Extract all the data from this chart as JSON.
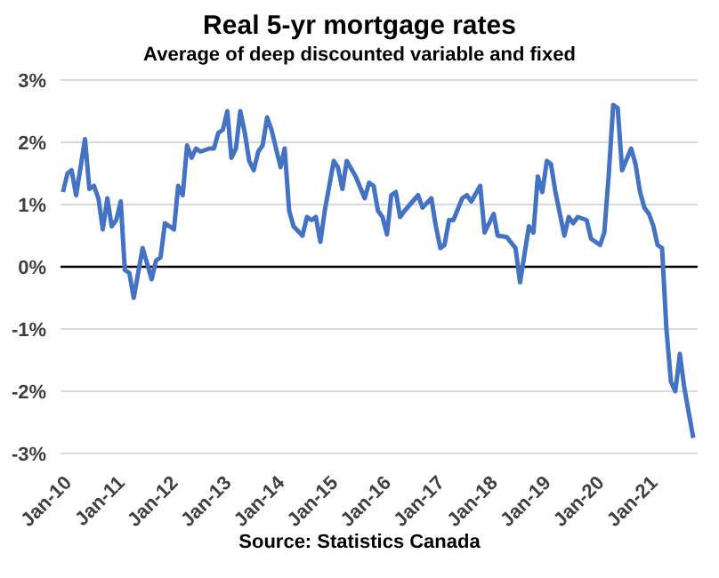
{
  "chart_data": {
    "type": "line",
    "title": "Real 5-yr mortgage rates",
    "subtitle": "Average of deep discounted variable and fixed",
    "annotations": [
      "Source: Statistics Canada"
    ],
    "series": [
      {
        "color": "#4472c4",
        "x": [
          "2010-01",
          "2010-02",
          "2010-03",
          "2010-04",
          "2010-06",
          "2010-07",
          "2010-08",
          "2010-09",
          "2010-10",
          "2010-11",
          "2010-12",
          "2011-01",
          "2011-02",
          "2011-03",
          "2011-04",
          "2011-05",
          "2011-07",
          "2011-09",
          "2011-10",
          "2011-11",
          "2011-12",
          "2012-02",
          "2012-03",
          "2012-04",
          "2012-05",
          "2012-06",
          "2012-07",
          "2012-08",
          "2012-10",
          "2012-11",
          "2012-12",
          "2013-01",
          "2013-02",
          "2013-03",
          "2013-04",
          "2013-05",
          "2013-06",
          "2013-07",
          "2013-08",
          "2013-09",
          "2013-10",
          "2013-11",
          "2013-12",
          "2014-02",
          "2014-03",
          "2014-04",
          "2014-05",
          "2014-07",
          "2014-08",
          "2014-09",
          "2014-10",
          "2014-11",
          "2014-12",
          "2015-02",
          "2015-03",
          "2015-04",
          "2015-05",
          "2015-07",
          "2015-09",
          "2015-10",
          "2015-11",
          "2015-12",
          "2016-01",
          "2016-02",
          "2016-03",
          "2016-04",
          "2016-05",
          "2016-06",
          "2016-09",
          "2016-10",
          "2016-12",
          "2017-01",
          "2017-02",
          "2017-03",
          "2017-04",
          "2017-05",
          "2017-07",
          "2017-08",
          "2017-09",
          "2017-11",
          "2017-12",
          "2018-02",
          "2018-03",
          "2018-05",
          "2018-07",
          "2018-08",
          "2018-10",
          "2018-11",
          "2018-12",
          "2019-01",
          "2019-02",
          "2019-03",
          "2019-04",
          "2019-06",
          "2019-07",
          "2019-08",
          "2019-09",
          "2019-11",
          "2019-12",
          "2020-02",
          "2020-03",
          "2020-04",
          "2020-05",
          "2020-06",
          "2020-07",
          "2020-09",
          "2020-10",
          "2020-11",
          "2020-12",
          "2021-01",
          "2021-02",
          "2021-03",
          "2021-04",
          "2021-05",
          "2021-06",
          "2021-07",
          "2021-08",
          "2021-09",
          "2021-11"
        ],
        "values": [
          1.2,
          1.5,
          1.55,
          1.15,
          2.05,
          1.25,
          1.3,
          1.1,
          0.6,
          1.1,
          0.65,
          0.75,
          1.05,
          -0.05,
          -0.1,
          -0.5,
          0.3,
          -0.2,
          0.1,
          0.15,
          0.7,
          0.6,
          1.3,
          1.15,
          1.95,
          1.75,
          1.9,
          1.85,
          1.9,
          1.9,
          2.15,
          2.2,
          2.5,
          1.75,
          1.9,
          2.5,
          2.15,
          1.7,
          1.55,
          1.85,
          1.95,
          2.4,
          2.2,
          1.6,
          1.9,
          0.9,
          0.65,
          0.5,
          0.8,
          0.75,
          0.8,
          0.4,
          0.9,
          1.7,
          1.6,
          1.25,
          1.7,
          1.45,
          1.1,
          1.35,
          1.3,
          0.9,
          0.8,
          0.52,
          1.15,
          1.2,
          0.8,
          0.9,
          1.15,
          0.95,
          1.1,
          0.65,
          0.3,
          0.35,
          0.75,
          0.75,
          1.1,
          1.15,
          1.05,
          1.3,
          0.55,
          0.85,
          0.5,
          0.48,
          0.3,
          -0.25,
          0.65,
          0.55,
          1.45,
          1.2,
          1.7,
          1.65,
          1.2,
          0.5,
          0.8,
          0.7,
          0.8,
          0.75,
          0.45,
          0.35,
          0.55,
          1.5,
          2.6,
          2.55,
          1.55,
          1.9,
          1.65,
          1.2,
          0.95,
          0.85,
          0.65,
          0.35,
          0.3,
          -1.0,
          -1.85,
          -2.0,
          -1.4,
          -1.95,
          -2.75
        ]
      }
    ],
    "xlim": [
      "2009-12-15",
      "2021-12-01"
    ],
    "xticks": [
      {
        "value": "2010-01",
        "label": "Jan-10"
      },
      {
        "value": "2011-01",
        "label": "Jan-11"
      },
      {
        "value": "2012-01",
        "label": "Jan-12"
      },
      {
        "value": "2013-01",
        "label": "Jan-13"
      },
      {
        "value": "2014-01",
        "label": "Jan-14"
      },
      {
        "value": "2015-01",
        "label": "Jan-15"
      },
      {
        "value": "2016-01",
        "label": "Jan-16"
      },
      {
        "value": "2017-01",
        "label": "Jan-17"
      },
      {
        "value": "2018-01",
        "label": "Jan-18"
      },
      {
        "value": "2019-01",
        "label": "Jan-19"
      },
      {
        "value": "2020-01",
        "label": "Jan-20"
      },
      {
        "value": "2021-01",
        "label": "Jan-21"
      }
    ],
    "ylim": [
      -3,
      3
    ],
    "yticks": [
      {
        "value": -3,
        "label": "-3%"
      },
      {
        "value": -2,
        "label": "-2%"
      },
      {
        "value": -1,
        "label": "-1%"
      },
      {
        "value": 0,
        "label": "0%"
      },
      {
        "value": 1,
        "label": "1%"
      },
      {
        "value": 2,
        "label": "2%"
      },
      {
        "value": 3,
        "label": "3%"
      }
    ],
    "grid": "y",
    "ref_lines": [
      {
        "axis": "y",
        "value": 0,
        "color": "#000000"
      }
    ],
    "legend": false,
    "marker": "none",
    "line_style": "solid"
  }
}
